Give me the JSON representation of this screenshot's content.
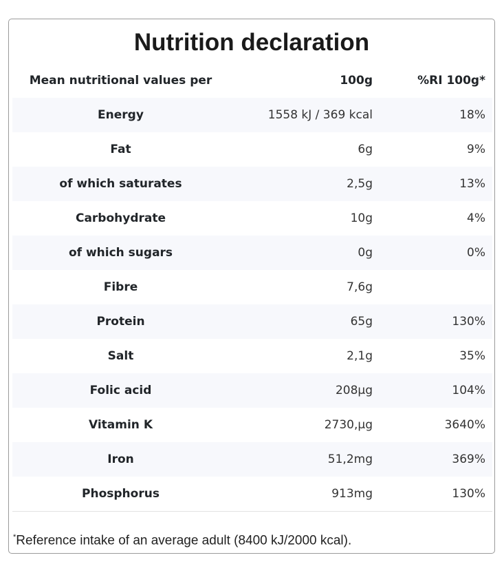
{
  "title": "Nutrition declaration",
  "header": {
    "col1": "Mean nutritional values per",
    "col2": "100g",
    "col3": "%RI 100g*"
  },
  "rows": [
    {
      "name": "Energy",
      "value": "1558 kJ / 369 kcal",
      "ri": "18%"
    },
    {
      "name": "Fat",
      "value": "6g",
      "ri": "9%"
    },
    {
      "name": "of which saturates",
      "value": "2,5g",
      "ri": "13%"
    },
    {
      "name": "Carbohydrate",
      "value": "10g",
      "ri": "4%"
    },
    {
      "name": "of which sugars",
      "value": "0g",
      "ri": "0%"
    },
    {
      "name": "Fibre",
      "value": "7,6g",
      "ri": ""
    },
    {
      "name": "Protein",
      "value": "65g",
      "ri": "130%"
    },
    {
      "name": "Salt",
      "value": "2,1g",
      "ri": "35%"
    },
    {
      "name": "Folic acid",
      "value": "208µg",
      "ri": "104%"
    },
    {
      "name": "Vitamin K",
      "value": "2730,µg",
      "ri": "3640%"
    },
    {
      "name": "Iron",
      "value": "51,2mg",
      "ri": "369%"
    },
    {
      "name": "Phosphorus",
      "value": "913mg",
      "ri": "130%"
    }
  ],
  "footnote": {
    "mark": "*",
    "text": "Reference intake of an average adult (8400 kJ/2000 kcal)."
  }
}
